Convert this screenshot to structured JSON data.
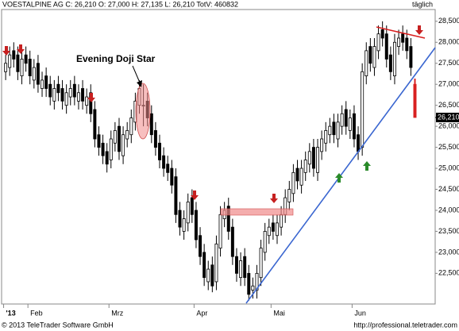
{
  "chart_data": {
    "type": "candlestick",
    "title": "VOESTALPINE AG C: 26,210 O: 27,000 H: 27,135 L: 26,210 TotV: 460832",
    "period": "täglich",
    "annotation": "Evening Doji Star",
    "footer_left": "© 2013 TeleTrader Software GmbH",
    "footer_right": "http://professional.teletrader.com",
    "open": [
      27.3,
      27.4,
      27.8,
      27.7,
      27.2,
      27.7,
      27.6,
      27.1,
      27.5,
      26.9,
      27.2,
      27.0,
      26.6,
      27.0,
      26.9,
      26.5,
      26.7,
      27.0,
      26.6,
      26.9,
      26.5,
      26.8,
      26.4,
      25.8,
      25.6,
      25.4,
      25.2,
      25.6,
      26.0,
      25.3,
      25.7,
      25.8,
      26.1,
      26.5,
      26.5,
      26.6,
      26.3,
      25.9,
      25.6,
      25.3,
      25.1,
      25.0,
      24.8,
      24.0,
      23.5,
      23.7,
      24.3,
      24.0,
      23.4,
      23.0,
      22.3,
      22.7,
      22.3,
      23.1,
      23.8,
      24.1,
      23.6,
      22.9,
      22.4,
      22.9,
      22.5,
      22.1,
      22.1,
      22.4,
      23.0,
      23.4,
      23.7,
      23.4,
      23.6,
      23.9,
      24.2,
      24.4,
      25.0,
      24.6,
      24.9,
      25.1,
      25.5,
      24.9,
      25.4,
      25.6,
      25.8,
      26.1,
      25.7,
      26.0,
      26.4,
      25.9,
      26.3,
      25.8,
      25.5,
      27.2,
      27.9,
      27.4,
      27.8,
      28.3,
      28.2,
      27.7,
      27.2,
      27.9,
      28.2,
      28.1,
      27.9,
      27.0
    ],
    "high": [
      27.7,
      27.9,
      28.0,
      27.9,
      27.8,
      27.9,
      27.8,
      27.6,
      27.7,
      27.3,
      27.4,
      27.2,
      27.1,
      27.2,
      27.1,
      27.0,
      27.1,
      27.2,
      27.0,
      27.1,
      26.9,
      27.0,
      26.6,
      26.0,
      25.8,
      25.6,
      25.9,
      26.1,
      26.2,
      26.0,
      26.1,
      26.4,
      26.8,
      27.1,
      27.0,
      26.8,
      26.5,
      26.1,
      25.8,
      25.5,
      25.3,
      25.2,
      25.0,
      24.2,
      24.0,
      24.4,
      24.5,
      24.2,
      23.6,
      23.2,
      22.8,
      22.9,
      23.4,
      24.1,
      24.2,
      24.3,
      23.8,
      23.1,
      23.0,
      23.1,
      22.7,
      22.4,
      22.7,
      23.3,
      23.7,
      23.8,
      23.9,
      23.9,
      24.1,
      24.5,
      24.7,
      25.1,
      25.2,
      25.2,
      25.4,
      25.6,
      25.7,
      25.7,
      25.9,
      26.1,
      26.2,
      26.3,
      26.3,
      26.5,
      26.6,
      26.4,
      26.5,
      26.0,
      27.5,
      28.0,
      28.1,
      28.1,
      28.4,
      28.5,
      28.4,
      27.9,
      28.2,
      28.3,
      28.4,
      28.3,
      28.1,
      27.135
    ],
    "low": [
      27.1,
      27.2,
      27.4,
      27.1,
      27.0,
      27.3,
      27.0,
      26.9,
      26.8,
      26.7,
      26.7,
      26.5,
      26.4,
      26.6,
      26.4,
      26.3,
      26.5,
      26.5,
      26.4,
      26.4,
      26.3,
      26.1,
      25.5,
      25.3,
      25.1,
      24.9,
      25.0,
      25.4,
      25.2,
      25.1,
      25.5,
      25.6,
      25.9,
      26.3,
      26.0,
      26.0,
      25.6,
      25.3,
      25.0,
      24.8,
      24.7,
      24.4,
      23.7,
      23.4,
      23.3,
      23.5,
      23.7,
      23.1,
      22.7,
      22.2,
      22.1,
      22.05,
      22.1,
      22.9,
      23.6,
      23.3,
      22.7,
      22.3,
      22.2,
      22.2,
      21.85,
      21.9,
      21.9,
      22.2,
      22.8,
      23.2,
      23.3,
      23.2,
      23.4,
      23.7,
      24.0,
      24.2,
      24.5,
      24.4,
      24.7,
      24.9,
      24.8,
      24.7,
      25.2,
      25.4,
      25.6,
      25.6,
      25.5,
      25.8,
      25.8,
      25.7,
      25.5,
      25.2,
      25.3,
      27.0,
      27.3,
      27.2,
      27.6,
      27.9,
      27.4,
      27.1,
      27.0,
      27.7,
      27.8,
      27.6,
      27.2,
      26.21
    ],
    "close": [
      27.5,
      27.7,
      27.6,
      27.3,
      27.6,
      27.5,
      27.2,
      27.4,
      27.0,
      27.1,
      26.9,
      26.7,
      26.9,
      26.8,
      26.6,
      26.8,
      26.9,
      26.7,
      26.8,
      26.6,
      26.7,
      26.3,
      25.7,
      25.5,
      25.3,
      25.1,
      25.7,
      25.9,
      25.4,
      25.8,
      25.9,
      26.2,
      26.6,
      26.9,
      26.5,
      26.2,
      25.8,
      25.5,
      25.2,
      25.0,
      24.9,
      24.6,
      23.9,
      23.6,
      23.8,
      24.2,
      23.9,
      23.3,
      22.9,
      22.4,
      22.6,
      22.2,
      23.2,
      23.9,
      24.0,
      23.5,
      22.9,
      22.5,
      22.8,
      22.4,
      22.0,
      22.2,
      22.5,
      23.1,
      23.5,
      23.6,
      23.5,
      23.7,
      23.9,
      24.3,
      24.5,
      24.9,
      24.7,
      25.0,
      25.2,
      25.4,
      25.0,
      25.5,
      25.7,
      25.9,
      26.0,
      25.8,
      26.1,
      26.3,
      26.0,
      26.2,
      25.7,
      25.4,
      27.3,
      27.8,
      27.5,
      27.9,
      28.2,
      28.1,
      27.6,
      27.3,
      28.0,
      28.1,
      28.0,
      27.8,
      27.4,
      26.21
    ],
    "last_price": {
      "value": 26.21,
      "label": "26,210"
    },
    "xlim": [
      -1,
      106
    ],
    "xticks": [
      {
        "value": 0,
        "label": "'13"
      },
      {
        "value": 6,
        "label": "Feb"
      },
      {
        "value": 26,
        "label": "Mrz"
      },
      {
        "value": 47,
        "label": "Apr"
      },
      {
        "value": 66,
        "label": "Mai"
      },
      {
        "value": 86,
        "label": "Jun"
      }
    ],
    "ylim": [
      21.77,
      28.78
    ],
    "yticks": [
      {
        "value": 22.5,
        "label": "22,500"
      },
      {
        "value": 23,
        "label": "23,000"
      },
      {
        "value": 23.5,
        "label": "23,500"
      },
      {
        "value": 24,
        "label": "24,000"
      },
      {
        "value": 24.5,
        "label": "24,500"
      },
      {
        "value": 25,
        "label": "25,000"
      },
      {
        "value": 25.5,
        "label": "25,500"
      },
      {
        "value": 26,
        "label": "26,000"
      },
      {
        "value": 26.5,
        "label": "26,500"
      },
      {
        "value": 27,
        "label": "27,000"
      },
      {
        "value": 27.5,
        "label": "27,500"
      },
      {
        "value": 28,
        "label": "28,000"
      },
      {
        "value": 28.5,
        "label": "28,500"
      }
    ],
    "up_color": "#ffffff",
    "down_color": "#000000"
  }
}
